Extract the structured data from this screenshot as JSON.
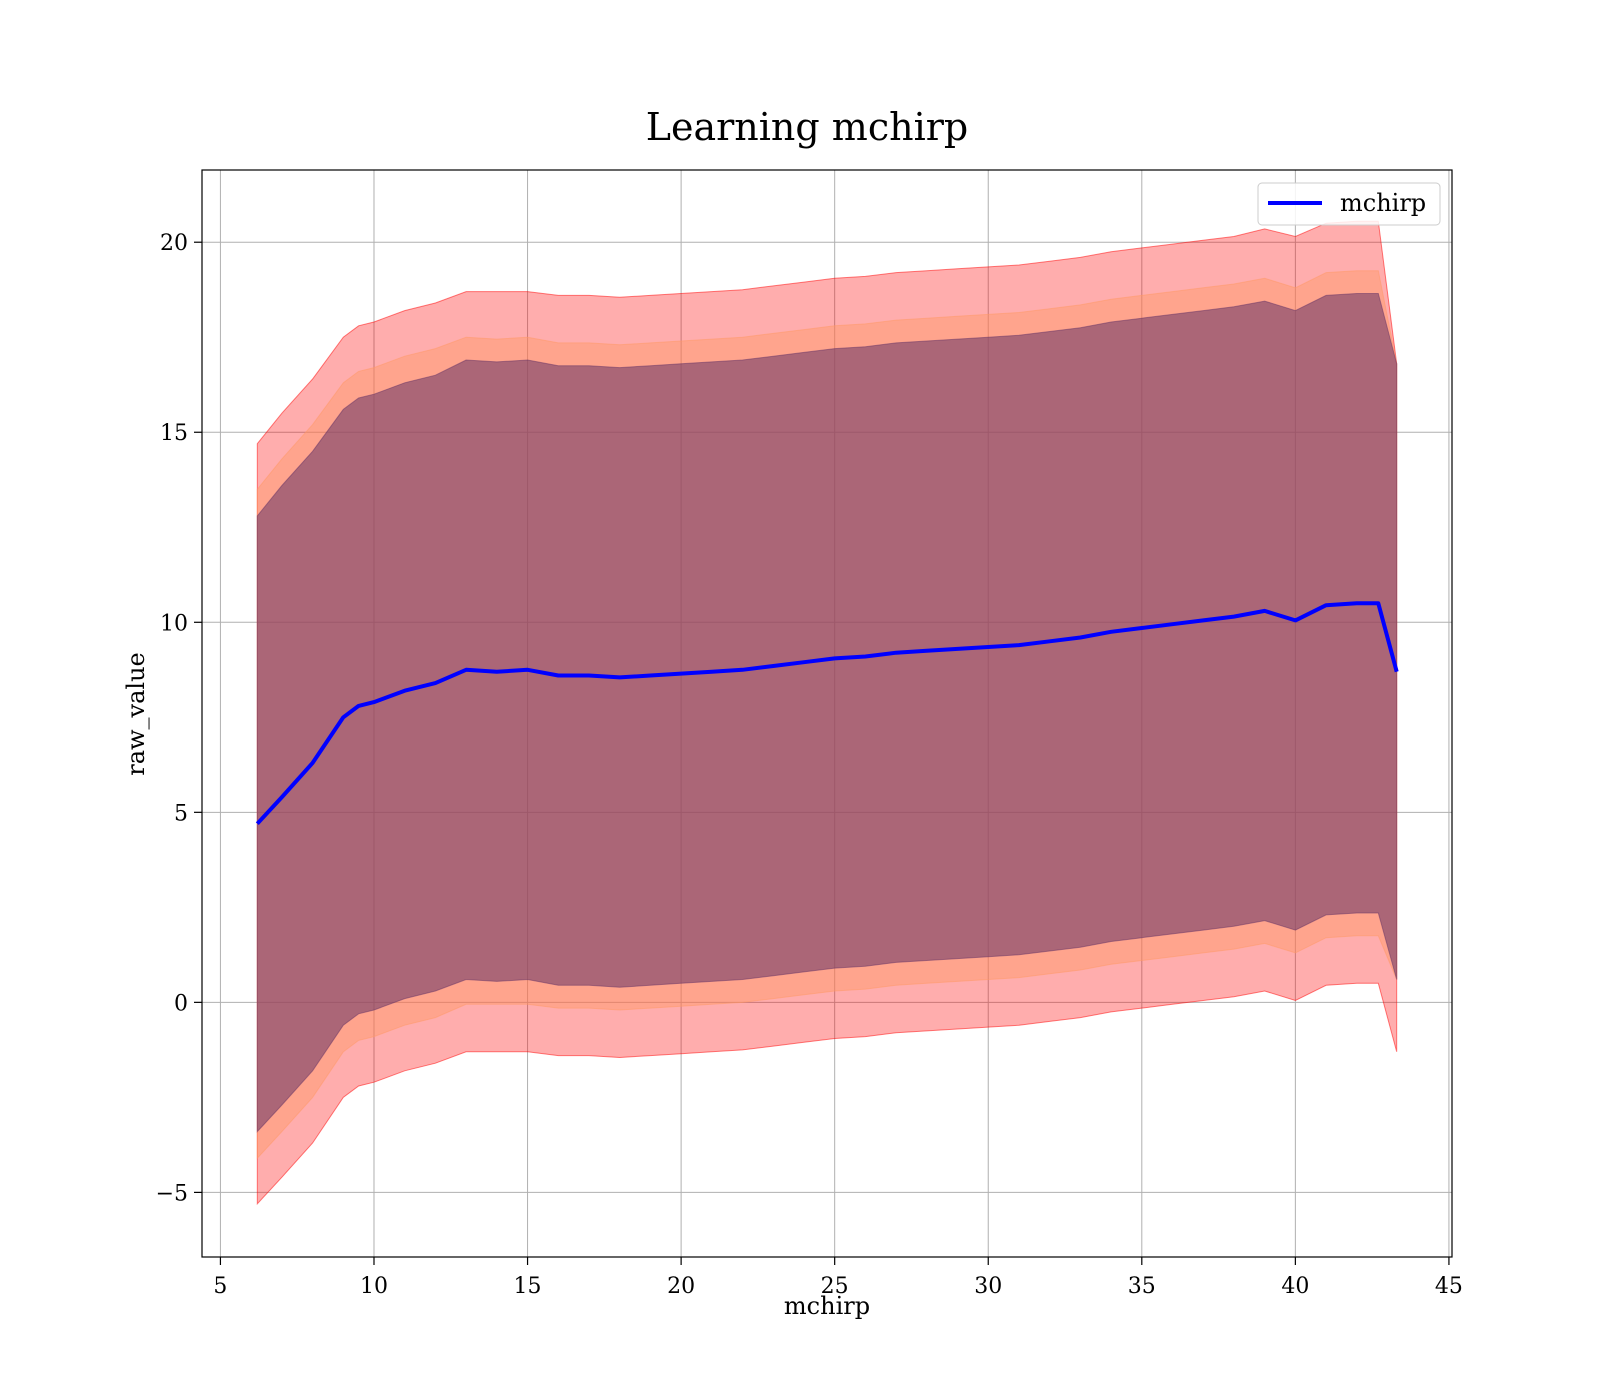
{
  "chart_data": {
    "type": "area",
    "title": "Learning mchirp",
    "xlabel": "mchirp",
    "ylabel": "raw_value",
    "xlim": [
      4.4,
      45.1
    ],
    "ylim": [
      -6.7,
      21.9
    ],
    "xticks": [
      5,
      10,
      15,
      20,
      25,
      30,
      35,
      40,
      45
    ],
    "yticks": [
      -5,
      0,
      5,
      10,
      15,
      20
    ],
    "ytick_labels": [
      "−5",
      "0",
      "5",
      "10",
      "15",
      "20"
    ],
    "grid": true,
    "legend": {
      "placement": "top-right",
      "entries": [
        "mchirp"
      ]
    },
    "x": [
      6.2,
      7,
      8,
      9,
      9.5,
      10,
      11,
      12,
      13,
      14,
      15,
      16,
      17,
      18,
      19,
      20,
      21,
      22,
      23,
      24,
      25,
      26,
      27,
      28,
      29,
      30,
      31,
      32,
      33,
      34,
      35,
      36,
      37,
      38,
      39,
      40,
      41,
      42,
      42.7,
      43.3
    ],
    "series": [
      {
        "name": "mchirp",
        "color": "#0000ff",
        "values": [
          4.7,
          5.4,
          6.3,
          7.5,
          7.8,
          7.9,
          8.2,
          8.4,
          8.75,
          8.7,
          8.75,
          8.6,
          8.6,
          8.55,
          8.6,
          8.65,
          8.7,
          8.75,
          8.85,
          8.95,
          9.05,
          9.1,
          9.2,
          9.25,
          9.3,
          9.35,
          9.4,
          9.5,
          9.6,
          9.75,
          9.85,
          9.95,
          10.05,
          10.15,
          10.3,
          10.05,
          10.45,
          10.5,
          10.5,
          8.7
        ]
      }
    ],
    "bands": [
      {
        "level": "outer",
        "color": "#ff0000",
        "opacity": 0.32,
        "upper": [
          14.7,
          15.5,
          16.4,
          17.5,
          17.8,
          17.9,
          18.2,
          18.4,
          18.7,
          18.7,
          18.7,
          18.6,
          18.6,
          18.55,
          18.6,
          18.65,
          18.7,
          18.75,
          18.85,
          18.95,
          19.05,
          19.1,
          19.2,
          19.25,
          19.3,
          19.35,
          19.4,
          19.5,
          19.6,
          19.75,
          19.85,
          19.95,
          20.05,
          20.15,
          20.35,
          20.15,
          20.5,
          20.55,
          20.55,
          16.8
        ],
        "lower": [
          -5.3,
          -4.6,
          -3.7,
          -2.5,
          -2.2,
          -2.1,
          -1.8,
          -1.6,
          -1.3,
          -1.3,
          -1.3,
          -1.4,
          -1.4,
          -1.45,
          -1.4,
          -1.35,
          -1.3,
          -1.25,
          -1.15,
          -1.05,
          -0.95,
          -0.9,
          -0.8,
          -0.75,
          -0.7,
          -0.65,
          -0.6,
          -0.5,
          -0.4,
          -0.25,
          -0.15,
          -0.05,
          0.05,
          0.15,
          0.3,
          0.05,
          0.45,
          0.5,
          0.5,
          -1.3
        ]
      },
      {
        "level": "middle",
        "color": "#ff9966",
        "opacity": 0.45,
        "upper": [
          13.5,
          14.3,
          15.2,
          16.3,
          16.6,
          16.7,
          17.0,
          17.2,
          17.5,
          17.45,
          17.5,
          17.35,
          17.35,
          17.3,
          17.35,
          17.4,
          17.45,
          17.5,
          17.6,
          17.7,
          17.8,
          17.85,
          17.95,
          18.0,
          18.05,
          18.1,
          18.15,
          18.25,
          18.35,
          18.5,
          18.6,
          18.7,
          18.8,
          18.9,
          19.05,
          18.8,
          19.2,
          19.25,
          19.25,
          16.8
        ],
        "lower": [
          -4.1,
          -3.4,
          -2.5,
          -1.3,
          -1.0,
          -0.9,
          -0.6,
          -0.4,
          -0.05,
          -0.05,
          -0.05,
          -0.15,
          -0.15,
          -0.2,
          -0.15,
          -0.1,
          -0.05,
          0.0,
          0.1,
          0.2,
          0.3,
          0.35,
          0.45,
          0.5,
          0.55,
          0.6,
          0.65,
          0.75,
          0.85,
          1.0,
          1.1,
          1.2,
          1.3,
          1.4,
          1.55,
          1.3,
          1.7,
          1.75,
          1.75,
          0.6
        ]
      },
      {
        "level": "inner",
        "color": "#663366",
        "opacity": 0.55,
        "upper": [
          12.8,
          13.6,
          14.5,
          15.6,
          15.9,
          16.0,
          16.3,
          16.5,
          16.9,
          16.85,
          16.9,
          16.75,
          16.75,
          16.7,
          16.75,
          16.8,
          16.85,
          16.9,
          17.0,
          17.1,
          17.2,
          17.25,
          17.35,
          17.4,
          17.45,
          17.5,
          17.55,
          17.65,
          17.75,
          17.9,
          18.0,
          18.1,
          18.2,
          18.3,
          18.45,
          18.2,
          18.6,
          18.65,
          18.65,
          16.8
        ],
        "lower": [
          -3.4,
          -2.7,
          -1.8,
          -0.6,
          -0.3,
          -0.2,
          0.1,
          0.3,
          0.6,
          0.55,
          0.6,
          0.45,
          0.45,
          0.4,
          0.45,
          0.5,
          0.55,
          0.6,
          0.7,
          0.8,
          0.9,
          0.95,
          1.05,
          1.1,
          1.15,
          1.2,
          1.25,
          1.35,
          1.45,
          1.6,
          1.7,
          1.8,
          1.9,
          2.0,
          2.15,
          1.9,
          2.3,
          2.35,
          2.35,
          0.6
        ]
      }
    ]
  }
}
